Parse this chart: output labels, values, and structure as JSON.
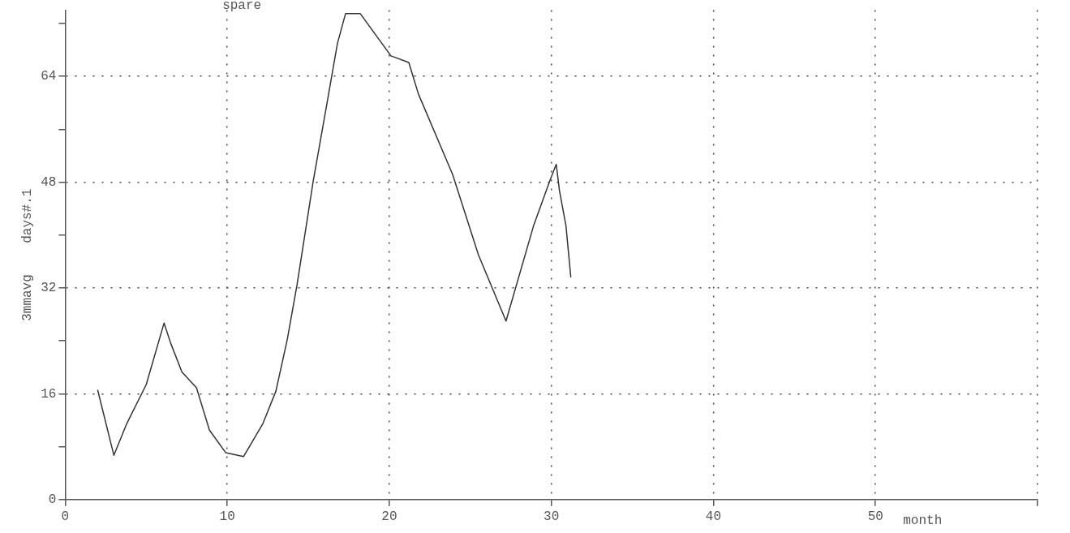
{
  "chart_data": {
    "type": "line",
    "xlabel": "month",
    "ylabel": "3mmavg    days#.1",
    "annotations": [
      "spare"
    ],
    "xlim": [
      0,
      60
    ],
    "xticks": [
      0,
      10,
      20,
      30,
      40,
      50,
      {
        "value": 60,
        "label": null
      }
    ],
    "ylim": [
      0,
      74
    ],
    "yticks": [
      0,
      {
        "value": 8,
        "label": null
      },
      16,
      {
        "value": 24,
        "label": null
      },
      32,
      {
        "value": 40,
        "label": null
      },
      48,
      {
        "value": 56,
        "label": null
      },
      64,
      {
        "value": 72,
        "label": null
      }
    ],
    "grid": true,
    "marker": "none",
    "line_style": "solid",
    "series": [
      {
        "color": "#333333",
        "x": [
          2,
          3,
          3.8,
          5,
          6.1,
          6.5,
          7.2,
          8.1,
          8.9,
          9.9,
          11,
          12.2,
          13,
          13.7,
          14.3,
          15.3,
          16,
          16.8,
          17.3,
          18.2,
          20.1,
          21.2,
          21.8,
          23.9,
          25.5,
          27.2,
          28.9,
          29.9,
          30.3,
          30.5,
          30.9,
          31.2
        ],
        "values": [
          16.6,
          6.7,
          11.5,
          17.4,
          26.7,
          23.7,
          19.3,
          16.9,
          10.5,
          7.1,
          6.5,
          11.5,
          16.4,
          24.2,
          32.4,
          48.1,
          57.8,
          69,
          73.5,
          73.5,
          67.1,
          66.1,
          61.3,
          49.2,
          37,
          27,
          41.4,
          48.2,
          50.7,
          46.7,
          41.4,
          33.6
        ]
      }
    ]
  }
}
